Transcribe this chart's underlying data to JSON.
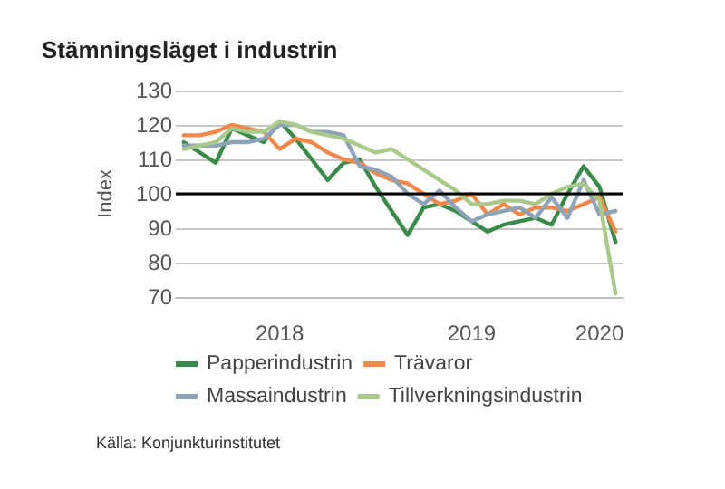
{
  "chart_data": {
    "type": "line",
    "title": "Stämningsläget i industrin",
    "ylabel": "Index",
    "annotations": [
      "Källa: Konjunkturinstitutet"
    ],
    "categories": [
      null,
      null,
      null,
      null,
      null,
      null,
      "2018",
      null,
      null,
      null,
      null,
      null,
      null,
      null,
      null,
      null,
      null,
      null,
      "2019",
      null,
      null,
      null,
      null,
      null,
      null,
      null,
      "2020",
      null
    ],
    "series": [
      {
        "name": "Papperindustrin",
        "color": "#3a8a4a",
        "values": [
          115,
          112,
          109,
          119,
          117,
          115,
          121,
          116,
          110,
          104,
          109,
          110,
          102,
          95,
          88,
          96,
          97,
          95,
          92,
          89,
          91,
          92,
          93,
          91,
          100,
          108,
          102,
          86
        ]
      },
      {
        "name": "Trävaror",
        "color": "#f0884a",
        "values": [
          117,
          117,
          118,
          120,
          119,
          118,
          113,
          116,
          115,
          112,
          110,
          109,
          106,
          104,
          103,
          100,
          97,
          98,
          100,
          94,
          97,
          94,
          96,
          96,
          95,
          97,
          99,
          89
        ]
      },
      {
        "name": "Massaindustrin",
        "color": "#8ea3b8",
        "values": [
          114,
          114,
          114,
          115,
          115,
          116,
          120,
          120,
          118,
          118,
          117,
          108,
          107,
          105,
          100,
          97,
          101,
          96,
          92,
          94,
          95,
          96,
          93,
          99,
          93,
          104,
          94,
          95
        ]
      },
      {
        "name": "Tillverkningsindustrin",
        "color": "#a9c98a",
        "values": [
          113,
          114,
          115,
          119,
          118,
          118,
          121,
          120,
          118,
          117,
          116,
          114,
          112,
          113,
          110,
          107,
          104,
          101,
          97,
          97,
          98,
          98,
          97,
          100,
          102,
          103,
          98,
          71
        ]
      }
    ],
    "ylim": [
      70,
      130
    ],
    "yticks": [
      70,
      80,
      90,
      100,
      110,
      120,
      130
    ],
    "grid": "y",
    "legend": "bottom",
    "marker": "none",
    "line_style": "solid",
    "ref_lines": [
      {
        "axis": "y",
        "value": 100,
        "color": "#000000"
      }
    ]
  }
}
